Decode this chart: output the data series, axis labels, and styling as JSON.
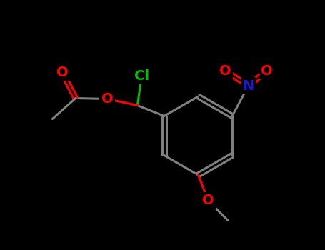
{
  "background_color": "#000000",
  "bond_color": "#808080",
  "atom_colors": {
    "O": "#ff0000",
    "N": "#1a1acd",
    "Cl": "#00bb00",
    "C": "#808080"
  },
  "bond_width": 2.2,
  "font_size_large": 14,
  "font_size_small": 12,
  "fig_width": 4.55,
  "fig_height": 3.5,
  "dpi": 100
}
